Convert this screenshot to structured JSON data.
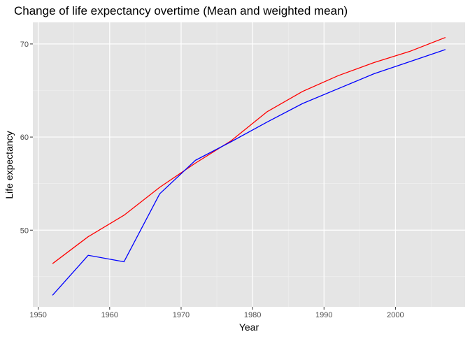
{
  "chart_data": {
    "type": "line",
    "title": "Change of life expectancy overtime (Mean and weighted mean)",
    "xlabel": "Year",
    "ylabel": "Life expectancy",
    "xlim": [
      1949.25,
      2009.75
    ],
    "ylim": [
      41.76,
      72.32
    ],
    "xticks": [
      1950,
      1960,
      1970,
      1980,
      1990,
      2000
    ],
    "xtick_labels": [
      "1950",
      "1960",
      "1970",
      "1980",
      "1990",
      "2000"
    ],
    "yticks": [
      50,
      60,
      70
    ],
    "ytick_labels": [
      "50",
      "60",
      "70"
    ],
    "grid": true,
    "legend": "none",
    "background": "#E5E5E5",
    "x": [
      1952,
      1957,
      1962,
      1967,
      1972,
      1977,
      1982,
      1987,
      1992,
      1997,
      2002,
      2007
    ],
    "series": [
      {
        "color": "#FF0000",
        "values": [
          46.4,
          49.3,
          51.6,
          54.6,
          57.2,
          59.6,
          62.7,
          64.9,
          66.6,
          68.0,
          69.2,
          70.7
        ]
      },
      {
        "color": "#0000FF",
        "values": [
          43.0,
          47.3,
          46.6,
          53.9,
          57.5,
          59.5,
          61.6,
          63.6,
          65.2,
          66.8,
          68.1,
          69.4
        ]
      }
    ]
  }
}
